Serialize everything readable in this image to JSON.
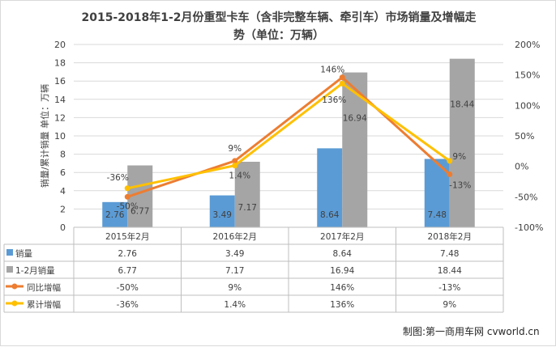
{
  "chart_data": {
    "type": "bar",
    "title_line1": "2015-2018年1-2月份重型卡车（含非完整车辆、牵引车）市场销量及增幅走",
    "title_line2": "势（单位：万辆）",
    "ylabel": "销量/累计销量 单位：万辆",
    "categories": [
      "2015年2月",
      "2016年2月",
      "2017年2月",
      "2018年2月"
    ],
    "ylim": [
      0,
      20
    ],
    "y_ticks": [
      "0",
      "2",
      "4",
      "6",
      "8",
      "10",
      "12",
      "14",
      "16",
      "18",
      "20"
    ],
    "y2lim": [
      -100,
      200
    ],
    "y2_ticks": [
      "-100%",
      "-50%",
      "0%",
      "50%",
      "100%",
      "150%",
      "200%"
    ],
    "grid": true,
    "series": [
      {
        "name": "销量",
        "kind": "bar",
        "axis": "left",
        "color": "#5b9bd5",
        "values": [
          2.76,
          3.49,
          8.64,
          7.48
        ],
        "labels": [
          "2.76",
          "3.49",
          "8.64",
          "7.48"
        ]
      },
      {
        "name": "1-2月销量",
        "kind": "bar",
        "axis": "left",
        "color": "#a5a5a5",
        "values": [
          6.77,
          7.17,
          16.94,
          18.44
        ],
        "labels": [
          "6.77",
          "7.17",
          "16.94",
          "18.44"
        ]
      },
      {
        "name": "同比增幅",
        "kind": "line",
        "axis": "right",
        "color": "#ed7d31",
        "values": [
          -50,
          9,
          146,
          -13
        ],
        "labels": [
          "-50%",
          "9%",
          "146%",
          "-13%"
        ]
      },
      {
        "name": "累计增幅",
        "kind": "line",
        "axis": "right",
        "color": "#ffc000",
        "values": [
          -36,
          1.4,
          136,
          9
        ],
        "labels": [
          "-36%",
          "1.4%",
          "136%",
          "9%"
        ]
      }
    ],
    "legend_placement": "data-table-left"
  },
  "credit": "制图:第一商用车网 cvworld.cn"
}
